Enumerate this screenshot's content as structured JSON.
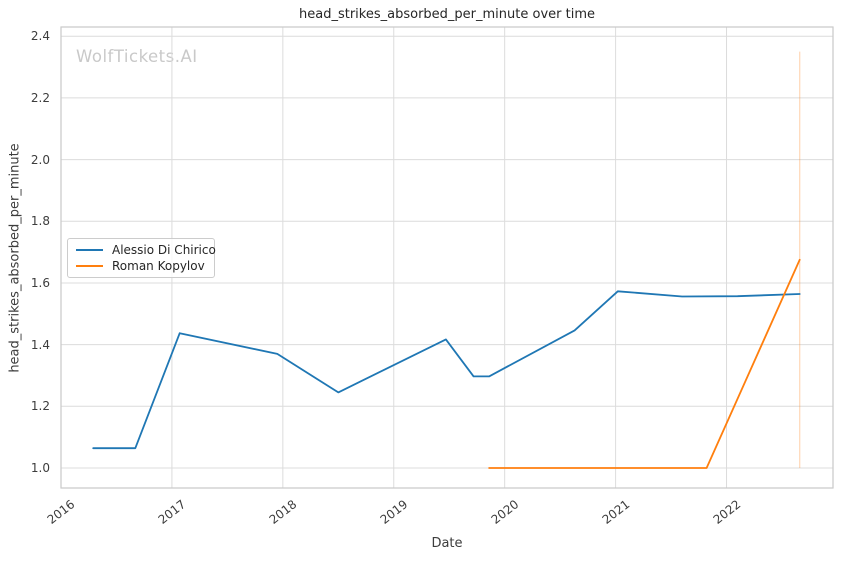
{
  "figure": {
    "watermark": "WolfTickets.AI"
  },
  "chart_data": {
    "type": "line",
    "title": "head_strikes_absorbed_per_minute over time",
    "xlabel": "Date",
    "ylabel": "head_strikes_absorbed_per_minute",
    "xlim": [
      2016.0,
      2022.96
    ],
    "ylim": [
      0.935,
      2.43
    ],
    "x_ticks": [
      2016,
      2017,
      2018,
      2019,
      2020,
      2021,
      2022
    ],
    "x_tick_labels": [
      "2016",
      "2017",
      "2018",
      "2019",
      "2020",
      "2021",
      "2022"
    ],
    "y_ticks": [
      1.0,
      1.2,
      1.4,
      1.6,
      1.8,
      2.0,
      2.2,
      2.4
    ],
    "y_tick_labels": [
      "1.0",
      "1.2",
      "1.4",
      "1.6",
      "1.8",
      "2.0",
      "2.2",
      "2.4"
    ],
    "grid": true,
    "legend": {
      "position": "center-left",
      "entries": [
        "Alessio Di Chirico",
        "Roman Kopylov"
      ]
    },
    "series": [
      {
        "name": "Alessio Di Chirico",
        "color": "#1f77b4",
        "x": [
          2016.29,
          2016.67,
          2017.07,
          2017.95,
          2018.5,
          2019.47,
          2019.72,
          2019.86,
          2020.63,
          2021.02,
          2021.6,
          2022.1,
          2022.66
        ],
        "y": [
          1.064,
          1.064,
          1.437,
          1.37,
          1.245,
          1.417,
          1.297,
          1.297,
          1.446,
          1.573,
          1.556,
          1.557,
          1.564
        ]
      },
      {
        "name": "Roman Kopylov",
        "color": "#ff7f0e",
        "x": [
          2019.86,
          2021.82,
          2022.66
        ],
        "y": [
          1.0,
          1.0,
          1.675
        ]
      }
    ],
    "annotations": {
      "last_event_vline": {
        "x": 2022.66,
        "y0": 1.0,
        "y1": 2.35,
        "color": "#ff7f0e",
        "opacity": 0.3
      }
    }
  },
  "style": {
    "background": "#ffffff",
    "grid_color": "#dcdcdc",
    "border_color": "#c9c9c9",
    "title_color": "#262626",
    "tick_color": "#3d3d3d",
    "watermark_color": "#c9c9c9"
  }
}
